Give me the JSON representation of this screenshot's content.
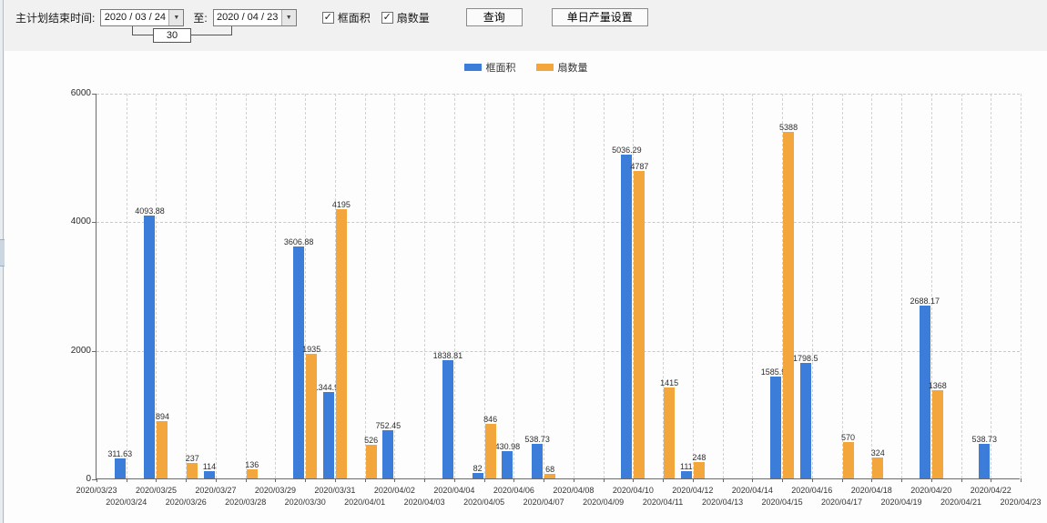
{
  "toolbar": {
    "label_period": "主计划结束时间:",
    "date_from": "2020 / 03 / 24",
    "label_to": "至:",
    "date_to": "2020 / 04 / 23",
    "days_between": "30",
    "checkbox_area_label": "框面积",
    "checkbox_fan_label": "扇数量",
    "checkbox_area_checked": true,
    "checkbox_fan_checked": true,
    "query_button": "查询",
    "daily_output_button": "单日产量设置"
  },
  "icons": {
    "checkmark": "✓",
    "dropdown_arrow": "▼"
  },
  "legend": {
    "area": "框面积",
    "fan": "扇数量"
  },
  "colors": {
    "area_series": "#3b7dd8",
    "fan_series": "#f2a63b",
    "grid": "#cccccc",
    "axis": "#6b6b6b"
  },
  "chart_data": {
    "type": "bar",
    "title": "",
    "xlabel": "",
    "ylabel": "",
    "ylim": [
      0,
      6000
    ],
    "yticks": [
      0,
      2000,
      4000,
      6000
    ],
    "grid": "dashed",
    "legend_position": "top-center",
    "categories": [
      "2020/03/23",
      "2020/03/24",
      "2020/03/25",
      "2020/03/26",
      "2020/03/27",
      "2020/03/28",
      "2020/03/29",
      "2020/03/30",
      "2020/03/31",
      "2020/04/01",
      "2020/04/02",
      "2020/04/03",
      "2020/04/04",
      "2020/04/05",
      "2020/04/06",
      "2020/04/07",
      "2020/04/08",
      "2020/04/09",
      "2020/04/10",
      "2020/04/11",
      "2020/04/12",
      "2020/04/13",
      "2020/04/14",
      "2020/04/15",
      "2020/04/16",
      "2020/04/17",
      "2020/04/18",
      "2020/04/19",
      "2020/04/20",
      "2020/04/21",
      "2020/04/22",
      "2020/04/23"
    ],
    "series": [
      {
        "name": "框面积",
        "color": "#3b7dd8",
        "values": [
          null,
          311.63,
          4093.88,
          null,
          114,
          null,
          null,
          3606.88,
          1344.95,
          null,
          752.45,
          null,
          1838.81,
          82,
          430.98,
          538.73,
          null,
          null,
          5036.29,
          null,
          111,
          null,
          null,
          1585.96,
          1798.5,
          null,
          null,
          null,
          2688.17,
          null,
          538.73,
          null
        ]
      },
      {
        "name": "扇数量",
        "color": "#f2a63b",
        "values": [
          null,
          null,
          894,
          237,
          null,
          136,
          null,
          1935,
          4195,
          526,
          null,
          null,
          null,
          846,
          null,
          68,
          null,
          null,
          4787,
          1415,
          248,
          null,
          null,
          5388,
          null,
          570,
          324,
          null,
          1368,
          null,
          null,
          null
        ]
      }
    ]
  }
}
